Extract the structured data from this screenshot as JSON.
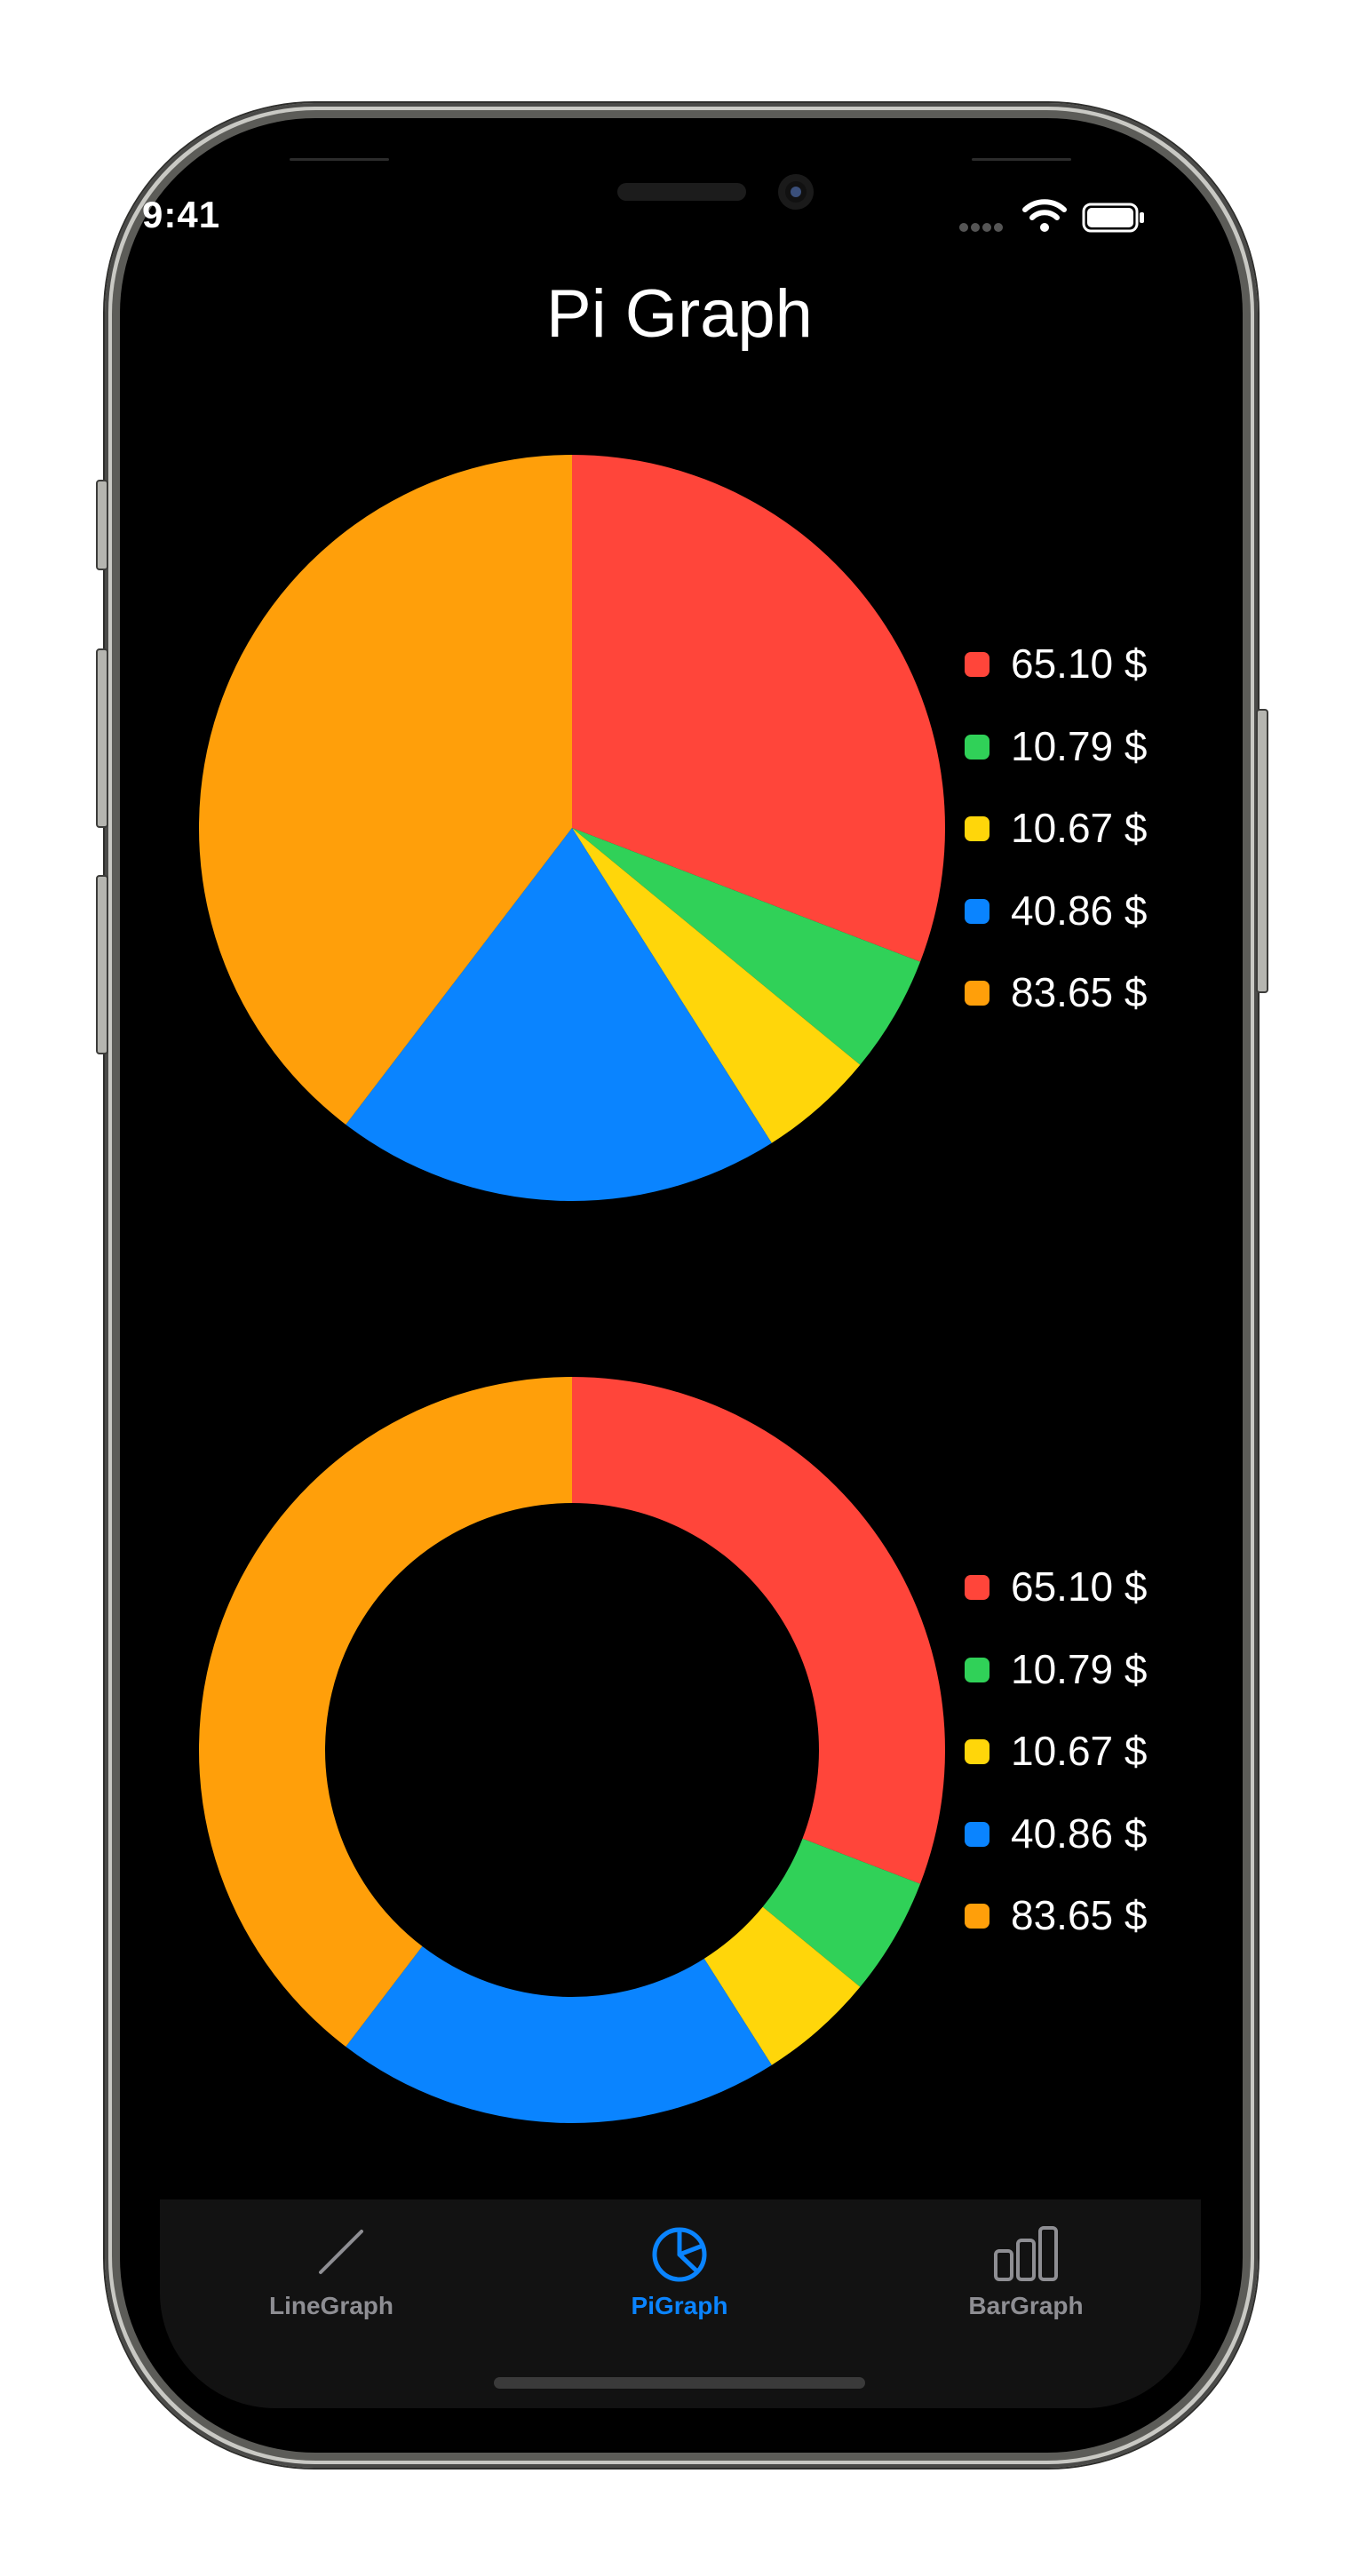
{
  "status_bar": {
    "time": "9:41"
  },
  "header": {
    "title": "Pi Graph"
  },
  "colors": {
    "red": "#FF453A",
    "green": "#30D158",
    "yellow": "#FFD60A",
    "blue": "#0A84FF",
    "orange": "#FF9F0A",
    "tab_active": "#0A84FF",
    "tab_inactive": "#8E8E93"
  },
  "legend_top": [
    {
      "label": "65.10 $",
      "color": "#FF453A"
    },
    {
      "label": "10.79 $",
      "color": "#30D158"
    },
    {
      "label": "10.67 $",
      "color": "#FFD60A"
    },
    {
      "label": "40.86 $",
      "color": "#0A84FF"
    },
    {
      "label": "83.65 $",
      "color": "#FF9F0A"
    }
  ],
  "legend_bottom": [
    {
      "label": "65.10 $",
      "color": "#FF453A"
    },
    {
      "label": "10.79 $",
      "color": "#30D158"
    },
    {
      "label": "10.67 $",
      "color": "#FFD60A"
    },
    {
      "label": "40.86 $",
      "color": "#0A84FF"
    },
    {
      "label": "83.65 $",
      "color": "#FF9F0A"
    }
  ],
  "chart_data": [
    {
      "type": "pie",
      "categories": [
        "65.10 $",
        "10.79 $",
        "10.67 $",
        "40.86 $",
        "83.65 $"
      ],
      "values": [
        65.1,
        10.79,
        10.67,
        40.86,
        83.65
      ],
      "colors": [
        "#FF453A",
        "#30D158",
        "#FFD60A",
        "#0A84FF",
        "#FF9F0A"
      ],
      "legend": "right"
    },
    {
      "type": "pie",
      "style": "donut",
      "categories": [
        "65.10 $",
        "10.79 $",
        "10.67 $",
        "40.86 $",
        "83.65 $"
      ],
      "values": [
        65.1,
        10.79,
        10.67,
        40.86,
        83.65
      ],
      "colors": [
        "#FF453A",
        "#30D158",
        "#FFD60A",
        "#0A84FF",
        "#FF9F0A"
      ],
      "legend": "right"
    }
  ],
  "tabs": [
    {
      "label": "LineGraph",
      "icon": "line-graph-icon",
      "active": false
    },
    {
      "label": "PiGraph",
      "icon": "pie-graph-icon",
      "active": true
    },
    {
      "label": "BarGraph",
      "icon": "bar-graph-icon",
      "active": false
    }
  ]
}
